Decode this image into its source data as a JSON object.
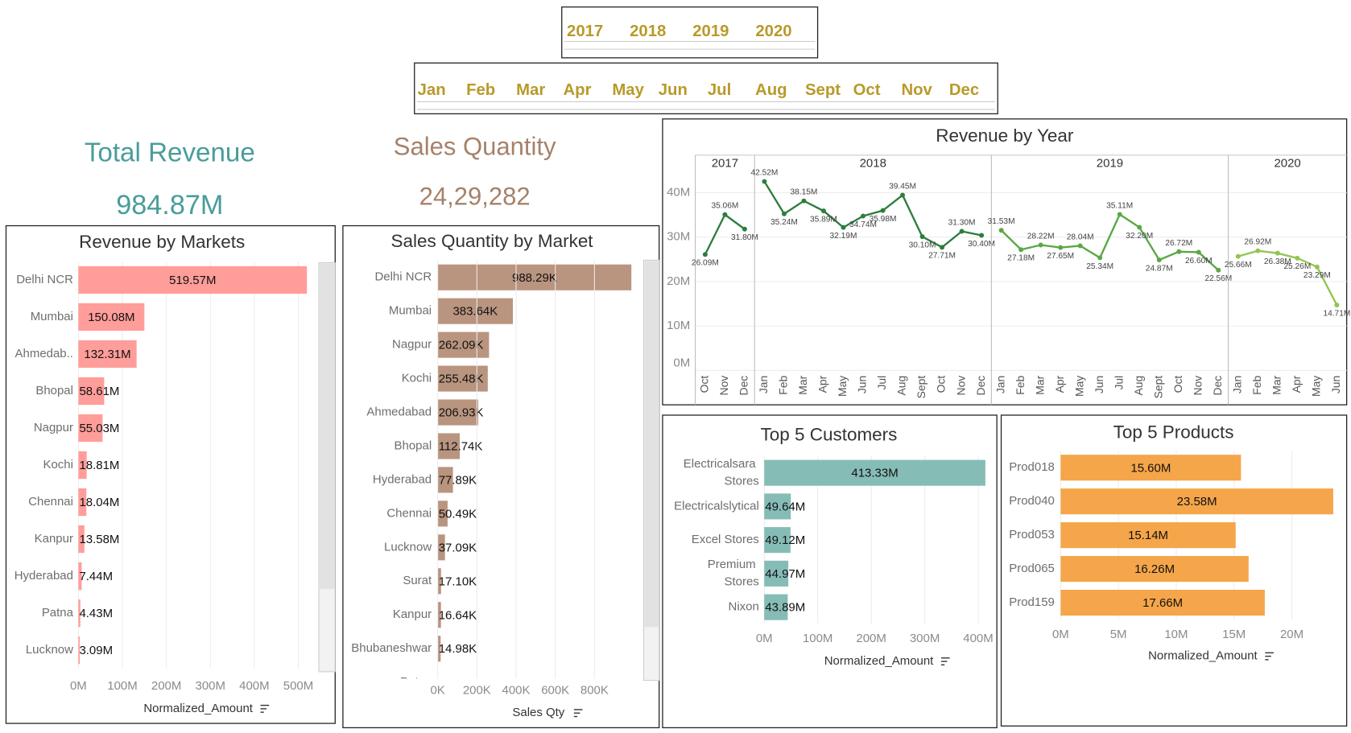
{
  "filters": {
    "years": [
      "2017",
      "2018",
      "2019",
      "2020"
    ],
    "months": [
      "Jan",
      "Feb",
      "Mar",
      "Apr",
      "May",
      "Jun",
      "Jul",
      "Aug",
      "Sept",
      "Oct",
      "Nov",
      "Dec"
    ]
  },
  "kpis": [
    {
      "title": "Total Revenue",
      "value": "984.87M"
    },
    {
      "title": "Sales Quantity",
      "value": "24,29,282"
    }
  ],
  "chart_data": [
    {
      "type": "hbar",
      "title": "Revenue by Markets",
      "categories": [
        "Delhi NCR",
        "Mumbai",
        "Ahmedab..",
        "Bhopal",
        "Nagpur",
        "Kochi",
        "Chennai",
        "Kanpur",
        "Hyderabad",
        "Patna",
        "Lucknow"
      ],
      "values": [
        519.57,
        150.08,
        132.31,
        58.61,
        55.03,
        18.81,
        18.04,
        13.58,
        7.44,
        4.43,
        3.09
      ],
      "value_labels": [
        "519.57M",
        "150.08M",
        "132.31M",
        "58.61M",
        "55.03M",
        "18.81M",
        "18.04M",
        "13.58M",
        "7.44M",
        "4.43M",
        "3.09M"
      ],
      "color": "#ff9d9a",
      "xlim": [
        0,
        527
      ],
      "xticks": [
        {
          "value": 0,
          "label": "0M"
        },
        {
          "value": 100,
          "label": "100M"
        },
        {
          "value": 200,
          "label": "200M"
        },
        {
          "value": 300,
          "label": "300M"
        },
        {
          "value": 400,
          "label": "400M"
        },
        {
          "value": 500,
          "label": "500M"
        }
      ],
      "x_label": "Normalized_Amount"
    },
    {
      "type": "hbar",
      "title": "Sales Quantity by Market",
      "categories": [
        "Delhi NCR",
        "Mumbai",
        "Nagpur",
        "Kochi",
        "Ahmedabad",
        "Bhopal",
        "Hyderabad",
        "Chennai",
        "Lucknow",
        "Surat",
        "Kanpur",
        "Bhubaneshwar",
        "Patna"
      ],
      "values": [
        988.29,
        383.64,
        262.09,
        255.48,
        206.93,
        112.74,
        77.89,
        50.49,
        37.09,
        17.1,
        16.64,
        14.98,
        null
      ],
      "value_labels": [
        "988.29K",
        "383.64K",
        "262.09K",
        "255.48K",
        "206.93K",
        "112.74K",
        "77.89K",
        "50.49K",
        "37.09K",
        "17.10K",
        "16.64K",
        "14.98K",
        null
      ],
      "color": "#b9947f",
      "xlim": [
        0,
        1020
      ],
      "xticks": [
        {
          "value": 0,
          "label": "0K"
        },
        {
          "value": 200,
          "label": "200K"
        },
        {
          "value": 400,
          "label": "400K"
        },
        {
          "value": 600,
          "label": "600K"
        },
        {
          "value": 800,
          "label": "800K"
        }
      ],
      "x_label": "Sales Qty"
    },
    {
      "type": "line",
      "title": "Revenue by Year",
      "year_labels": [
        "2017",
        "2018",
        "2019",
        "2020"
      ],
      "categories": [
        "Oct",
        "Nov",
        "Dec",
        "Jan",
        "Feb",
        "Mar",
        "Apr",
        "May",
        "Jun",
        "Jul",
        "Aug",
        "Sept",
        "Oct",
        "Nov",
        "Dec",
        "Jan",
        "Feb",
        "Mar",
        "Apr",
        "May",
        "Jun",
        "Jul",
        "Aug",
        "Sept",
        "Oct",
        "Nov",
        "Dec",
        "Jan",
        "Feb",
        "Mar",
        "Apr",
        "May",
        "Jun"
      ],
      "values": [
        26.09,
        35.06,
        31.8,
        42.52,
        35.24,
        38.15,
        35.89,
        32.19,
        34.74,
        35.98,
        39.45,
        30.1,
        27.71,
        31.3,
        30.4,
        31.53,
        27.18,
        28.22,
        27.65,
        28.04,
        25.34,
        35.11,
        32.2,
        24.87,
        26.72,
        26.6,
        22.56,
        25.66,
        26.92,
        26.38,
        25.26,
        23.29,
        14.71
      ],
      "value_labels": [
        "26.09M",
        "35.06M",
        "31.80M",
        "42.52M",
        "35.24M",
        "38.15M",
        "35.89M",
        "32.19M",
        "34.74M",
        "35.98M",
        "39.45M",
        "30.10M",
        "27.71M",
        "31.30M",
        "30.40M",
        "31.53M",
        "27.18M",
        "28.22M",
        "27.65M",
        "28.04M",
        "25.34M",
        "35.11M",
        "32.20M",
        "24.87M",
        "26.72M",
        "26.60M",
        "22.56M",
        "25.66M",
        "26.92M",
        "26.38M",
        "25.26M",
        "23.29M",
        "14.71M"
      ],
      "year_colors": [
        "#2e7d3e",
        "#2e7d3e",
        "#5aa845",
        "#93c452"
      ],
      "ylim": [
        0,
        44
      ],
      "yticks": [
        {
          "value": 0,
          "label": "0M"
        },
        {
          "value": 10,
          "label": "10M"
        },
        {
          "value": 20,
          "label": "20M"
        },
        {
          "value": 30,
          "label": "30M"
        },
        {
          "value": 40,
          "label": "40M"
        }
      ],
      "grid": true
    },
    {
      "type": "hbar",
      "title": "Top 5 Customers",
      "categories": [
        "Electricalsara Stores",
        "Electricalslytical",
        "Excel Stores",
        "Premium Stores",
        "Nixon"
      ],
      "values": [
        413.33,
        49.64,
        49.12,
        44.97,
        43.89
      ],
      "value_labels": [
        "413.33M",
        "49.64M",
        "49.12M",
        "44.97M",
        "43.89M"
      ],
      "color": "#86bcb6",
      "xlim": [
        0,
        430
      ],
      "xticks": [
        {
          "value": 0,
          "label": "0M"
        },
        {
          "value": 100,
          "label": "100M"
        },
        {
          "value": 200,
          "label": "200M"
        },
        {
          "value": 300,
          "label": "300M"
        },
        {
          "value": 400,
          "label": "400M"
        }
      ],
      "x_label": "Normalized_Amount"
    },
    {
      "type": "hbar",
      "title": "Top 5 Products",
      "categories": [
        "Prod018",
        "Prod040",
        "Prod053",
        "Prod065",
        "Prod159"
      ],
      "values": [
        15.6,
        23.58,
        15.14,
        16.26,
        17.66
      ],
      "value_labels": [
        "15.60M",
        "23.58M",
        "15.14M",
        "16.26M",
        "17.66M"
      ],
      "color": "#f5a54a",
      "xlim": [
        0,
        24
      ],
      "xticks": [
        {
          "value": 0,
          "label": "0M"
        },
        {
          "value": 5,
          "label": "5M"
        },
        {
          "value": 10,
          "label": "10M"
        },
        {
          "value": 15,
          "label": "15M"
        },
        {
          "value": 20,
          "label": "20M"
        }
      ],
      "x_label": "Normalized_Amount"
    }
  ]
}
